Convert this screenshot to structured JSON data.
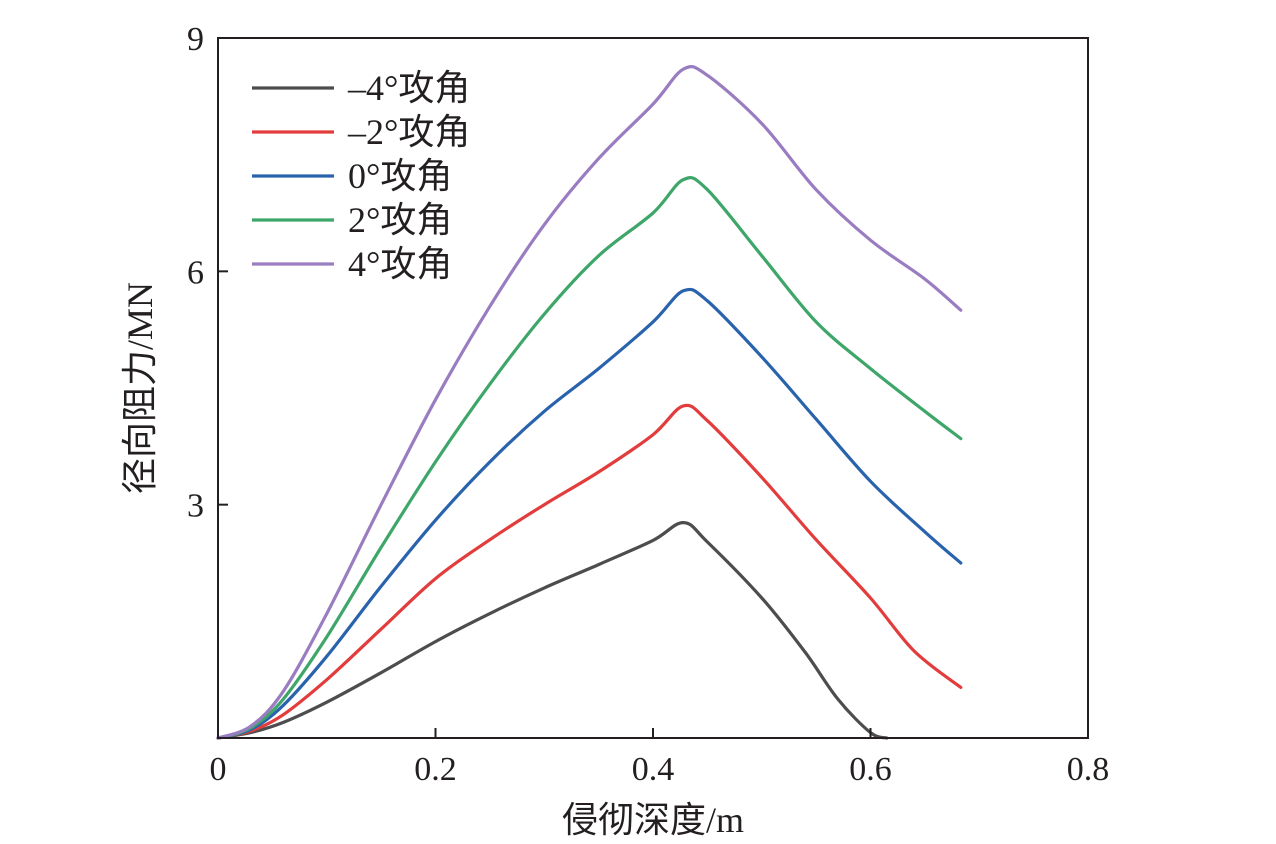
{
  "chart_data": {
    "type": "line",
    "xlabel": "侵彻深度/m",
    "ylabel": "径向阻力/MN",
    "xlim": [
      0,
      0.8
    ],
    "ylim": [
      0,
      9
    ],
    "xticks": [
      0,
      0.2,
      0.4,
      0.6,
      0.8
    ],
    "yticks": [
      3,
      6,
      9
    ],
    "x_tick_labels": [
      "0",
      "0.2",
      "0.4",
      "0.6",
      "0.8"
    ],
    "y_tick_labels": [
      "3",
      "6",
      "9"
    ],
    "grid": false,
    "legend_position": "top-left",
    "series": [
      {
        "name": "–4°攻角",
        "color": "#4d4d4f",
        "points": [
          [
            0,
            0
          ],
          [
            0.03,
            0.07
          ],
          [
            0.06,
            0.2
          ],
          [
            0.1,
            0.46
          ],
          [
            0.15,
            0.84
          ],
          [
            0.2,
            1.24
          ],
          [
            0.25,
            1.6
          ],
          [
            0.3,
            1.93
          ],
          [
            0.35,
            2.23
          ],
          [
            0.4,
            2.54
          ],
          [
            0.428,
            2.77
          ],
          [
            0.45,
            2.52
          ],
          [
            0.5,
            1.8
          ],
          [
            0.54,
            1.1
          ],
          [
            0.57,
            0.5
          ],
          [
            0.6,
            0.07
          ],
          [
            0.615,
            0
          ]
        ]
      },
      {
        "name": "–2°攻角",
        "color": "#e23c3c",
        "points": [
          [
            0,
            0
          ],
          [
            0.03,
            0.09
          ],
          [
            0.06,
            0.3
          ],
          [
            0.1,
            0.75
          ],
          [
            0.15,
            1.4
          ],
          [
            0.2,
            2.05
          ],
          [
            0.25,
            2.55
          ],
          [
            0.3,
            3.0
          ],
          [
            0.35,
            3.42
          ],
          [
            0.4,
            3.9
          ],
          [
            0.428,
            4.27
          ],
          [
            0.45,
            4.08
          ],
          [
            0.5,
            3.35
          ],
          [
            0.55,
            2.55
          ],
          [
            0.6,
            1.8
          ],
          [
            0.64,
            1.12
          ],
          [
            0.683,
            0.65
          ]
        ]
      },
      {
        "name": "0°攻角",
        "color": "#2a63ad",
        "points": [
          [
            0,
            0
          ],
          [
            0.03,
            0.11
          ],
          [
            0.06,
            0.42
          ],
          [
            0.1,
            1.05
          ],
          [
            0.15,
            1.95
          ],
          [
            0.2,
            2.8
          ],
          [
            0.25,
            3.55
          ],
          [
            0.3,
            4.2
          ],
          [
            0.35,
            4.75
          ],
          [
            0.4,
            5.35
          ],
          [
            0.428,
            5.75
          ],
          [
            0.45,
            5.62
          ],
          [
            0.5,
            4.9
          ],
          [
            0.55,
            4.1
          ],
          [
            0.6,
            3.3
          ],
          [
            0.65,
            2.65
          ],
          [
            0.683,
            2.25
          ]
        ]
      },
      {
        "name": "2°攻角",
        "color": "#3fa66a",
        "points": [
          [
            0,
            0
          ],
          [
            0.03,
            0.13
          ],
          [
            0.06,
            0.5
          ],
          [
            0.1,
            1.3
          ],
          [
            0.15,
            2.45
          ],
          [
            0.2,
            3.55
          ],
          [
            0.25,
            4.55
          ],
          [
            0.3,
            5.45
          ],
          [
            0.35,
            6.2
          ],
          [
            0.4,
            6.75
          ],
          [
            0.428,
            7.18
          ],
          [
            0.45,
            7.05
          ],
          [
            0.5,
            6.2
          ],
          [
            0.55,
            5.35
          ],
          [
            0.6,
            4.75
          ],
          [
            0.65,
            4.2
          ],
          [
            0.683,
            3.85
          ]
        ]
      },
      {
        "name": "4°攻角",
        "color": "#9a7cc1",
        "points": [
          [
            0,
            0
          ],
          [
            0.03,
            0.15
          ],
          [
            0.06,
            0.6
          ],
          [
            0.1,
            1.6
          ],
          [
            0.15,
            3.0
          ],
          [
            0.2,
            4.35
          ],
          [
            0.25,
            5.55
          ],
          [
            0.3,
            6.6
          ],
          [
            0.35,
            7.45
          ],
          [
            0.4,
            8.15
          ],
          [
            0.428,
            8.6
          ],
          [
            0.45,
            8.52
          ],
          [
            0.5,
            7.9
          ],
          [
            0.55,
            7.05
          ],
          [
            0.6,
            6.4
          ],
          [
            0.65,
            5.9
          ],
          [
            0.683,
            5.5
          ]
        ]
      }
    ]
  }
}
